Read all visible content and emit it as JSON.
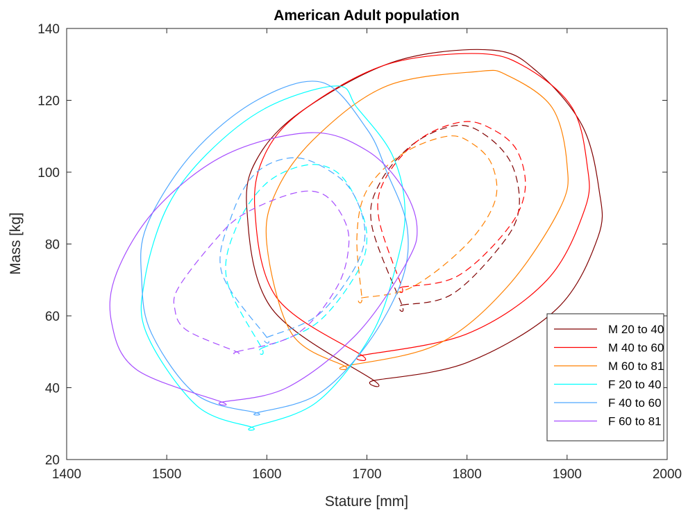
{
  "chart_data": {
    "type": "line",
    "title": "American Adult population",
    "xlabel": "Stature [mm]",
    "ylabel": "Mass [kg]",
    "xlim": [
      1400,
      2000
    ],
    "ylim": [
      20,
      140
    ],
    "xticks": [
      1400,
      1500,
      1600,
      1700,
      1800,
      1900,
      2000
    ],
    "yticks": [
      20,
      40,
      60,
      80,
      100,
      120,
      140
    ],
    "grid": false,
    "legend_position": "bottom-right",
    "series": [
      {
        "name": "M 20 to 40",
        "color": "#800000",
        "outer_ellipse": {
          "x": [
            1707,
            1800,
            1890,
            1931,
            1932,
            1915,
            1870,
            1825,
            1730,
            1640,
            1593,
            1580,
            1605,
            1707
          ],
          "y": [
            42,
            47,
            62,
            82,
            95,
            113,
            128,
            134,
            131,
            118,
            105,
            90,
            62,
            42
          ]
        },
        "inner_ellipse": {
          "x": [
            1735,
            1785,
            1835,
            1852,
            1845,
            1820,
            1790,
            1747,
            1713,
            1705,
            1735
          ],
          "y": [
            63,
            66,
            80,
            90,
            102,
            110,
            113,
            108,
            97,
            85,
            63
          ]
        }
      },
      {
        "name": "M 40 to 60",
        "color": "#FF0000",
        "outer_ellipse": {
          "x": [
            1695,
            1800,
            1880,
            1918,
            1920,
            1905,
            1860,
            1812,
            1720,
            1640,
            1600,
            1588,
            1610,
            1695
          ],
          "y": [
            49,
            55,
            70,
            90,
            102,
            118,
            129,
            133,
            130,
            118,
            106,
            90,
            65,
            49
          ]
        },
        "inner_ellipse": {
          "x": [
            1735,
            1790,
            1840,
            1858,
            1850,
            1825,
            1795,
            1752,
            1718,
            1712,
            1735
          ],
          "y": [
            68,
            71,
            84,
            95,
            106,
            112,
            114,
            109,
            98,
            87,
            68
          ]
        }
      },
      {
        "name": "M 60 to 81",
        "color": "#FF8000",
        "outer_ellipse": {
          "x": [
            1678,
            1770,
            1840,
            1893,
            1900,
            1885,
            1840,
            1810,
            1720,
            1650,
            1610,
            1600,
            1625,
            1678
          ],
          "y": [
            46,
            52,
            68,
            90,
            102,
            118,
            127,
            128,
            124,
            110,
            95,
            80,
            55,
            46
          ]
        },
        "inner_ellipse": {
          "x": [
            1695,
            1745,
            1800,
            1828,
            1825,
            1805,
            1780,
            1735,
            1700,
            1690,
            1695
          ],
          "y": [
            65,
            68,
            80,
            92,
            102,
            108,
            110,
            105,
            95,
            82,
            65
          ]
        }
      },
      {
        "name": "F 20 to 40",
        "color": "#00FFFF",
        "outer_ellipse": {
          "x": [
            1585,
            1650,
            1705,
            1730,
            1738,
            1725,
            1690,
            1670,
            1600,
            1540,
            1500,
            1478,
            1480,
            1530,
            1585
          ],
          "y": [
            29,
            36,
            55,
            75,
            90,
            105,
            118,
            124,
            118,
            105,
            90,
            70,
            55,
            35,
            29
          ]
        },
        "inner_ellipse": {
          "x": [
            1595,
            1650,
            1690,
            1700,
            1690,
            1670,
            1640,
            1600,
            1570,
            1560,
            1595
          ],
          "y": [
            51,
            58,
            72,
            82,
            92,
            100,
            102,
            97,
            85,
            70,
            51
          ]
        }
      },
      {
        "name": "F 40 to 60",
        "color": "#4DA6FF",
        "outer_ellipse": {
          "x": [
            1590,
            1650,
            1700,
            1735,
            1740,
            1720,
            1700,
            1655,
            1590,
            1525,
            1480,
            1475,
            1485,
            1530,
            1590
          ],
          "y": [
            33,
            38,
            52,
            70,
            85,
            100,
            112,
            125,
            120,
            105,
            85,
            70,
            55,
            38,
            33
          ]
        },
        "inner_ellipse": {
          "x": [
            1600,
            1650,
            1685,
            1698,
            1690,
            1670,
            1630,
            1590,
            1565,
            1555,
            1600
          ],
          "y": [
            54,
            60,
            72,
            82,
            92,
            99,
            104,
            100,
            88,
            72,
            54
          ]
        }
      },
      {
        "name": "F 60 to 81",
        "color": "#A64DFF",
        "outer_ellipse": {
          "x": [
            1555,
            1620,
            1690,
            1740,
            1750,
            1735,
            1700,
            1645,
            1560,
            1490,
            1450,
            1445,
            1470,
            1555
          ],
          "y": [
            36,
            40,
            55,
            75,
            85,
            96,
            106,
            111,
            105,
            90,
            72,
            58,
            45,
            36
          ]
        },
        "inner_ellipse": {
          "x": [
            1570,
            1630,
            1670,
            1682,
            1675,
            1655,
            1625,
            1575,
            1545,
            1512,
            1508,
            1520,
            1570
          ],
          "y": [
            50,
            55,
            68,
            80,
            88,
            94,
            94,
            88,
            80,
            68,
            62,
            56,
            50
          ]
        }
      }
    ]
  }
}
